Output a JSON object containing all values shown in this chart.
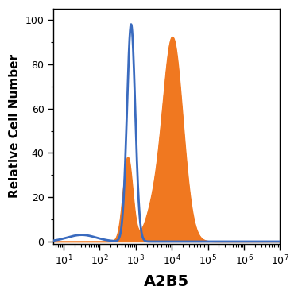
{
  "title": "",
  "xlabel": "A2B5",
  "ylabel": "Relative Cell Number",
  "xlim_log": [
    0.72,
    7.0
  ],
  "ylim": [
    -1,
    105
  ],
  "yticks": [
    0,
    20,
    40,
    60,
    80,
    100
  ],
  "blue_color": "#3a6bbf",
  "orange_color": "#f07820",
  "blue_linewidth": 2.0,
  "background_color": "#ffffff",
  "xlabel_fontsize": 14,
  "ylabel_fontsize": 11,
  "blue_peak_mu": 2.87,
  "blue_peak_sigma": 0.115,
  "blue_peak_amp": 98,
  "orange_peak1_mu": 2.78,
  "orange_peak1_sigma": 0.13,
  "orange_peak1_amp": 38,
  "orange_peak2_mu": 4.02,
  "orange_peak2_sigma": 0.28,
  "orange_peak2_amp": 92,
  "orange_valley_mu": 3.45,
  "orange_valley_sigma": 0.22,
  "orange_valley_amp": 10
}
